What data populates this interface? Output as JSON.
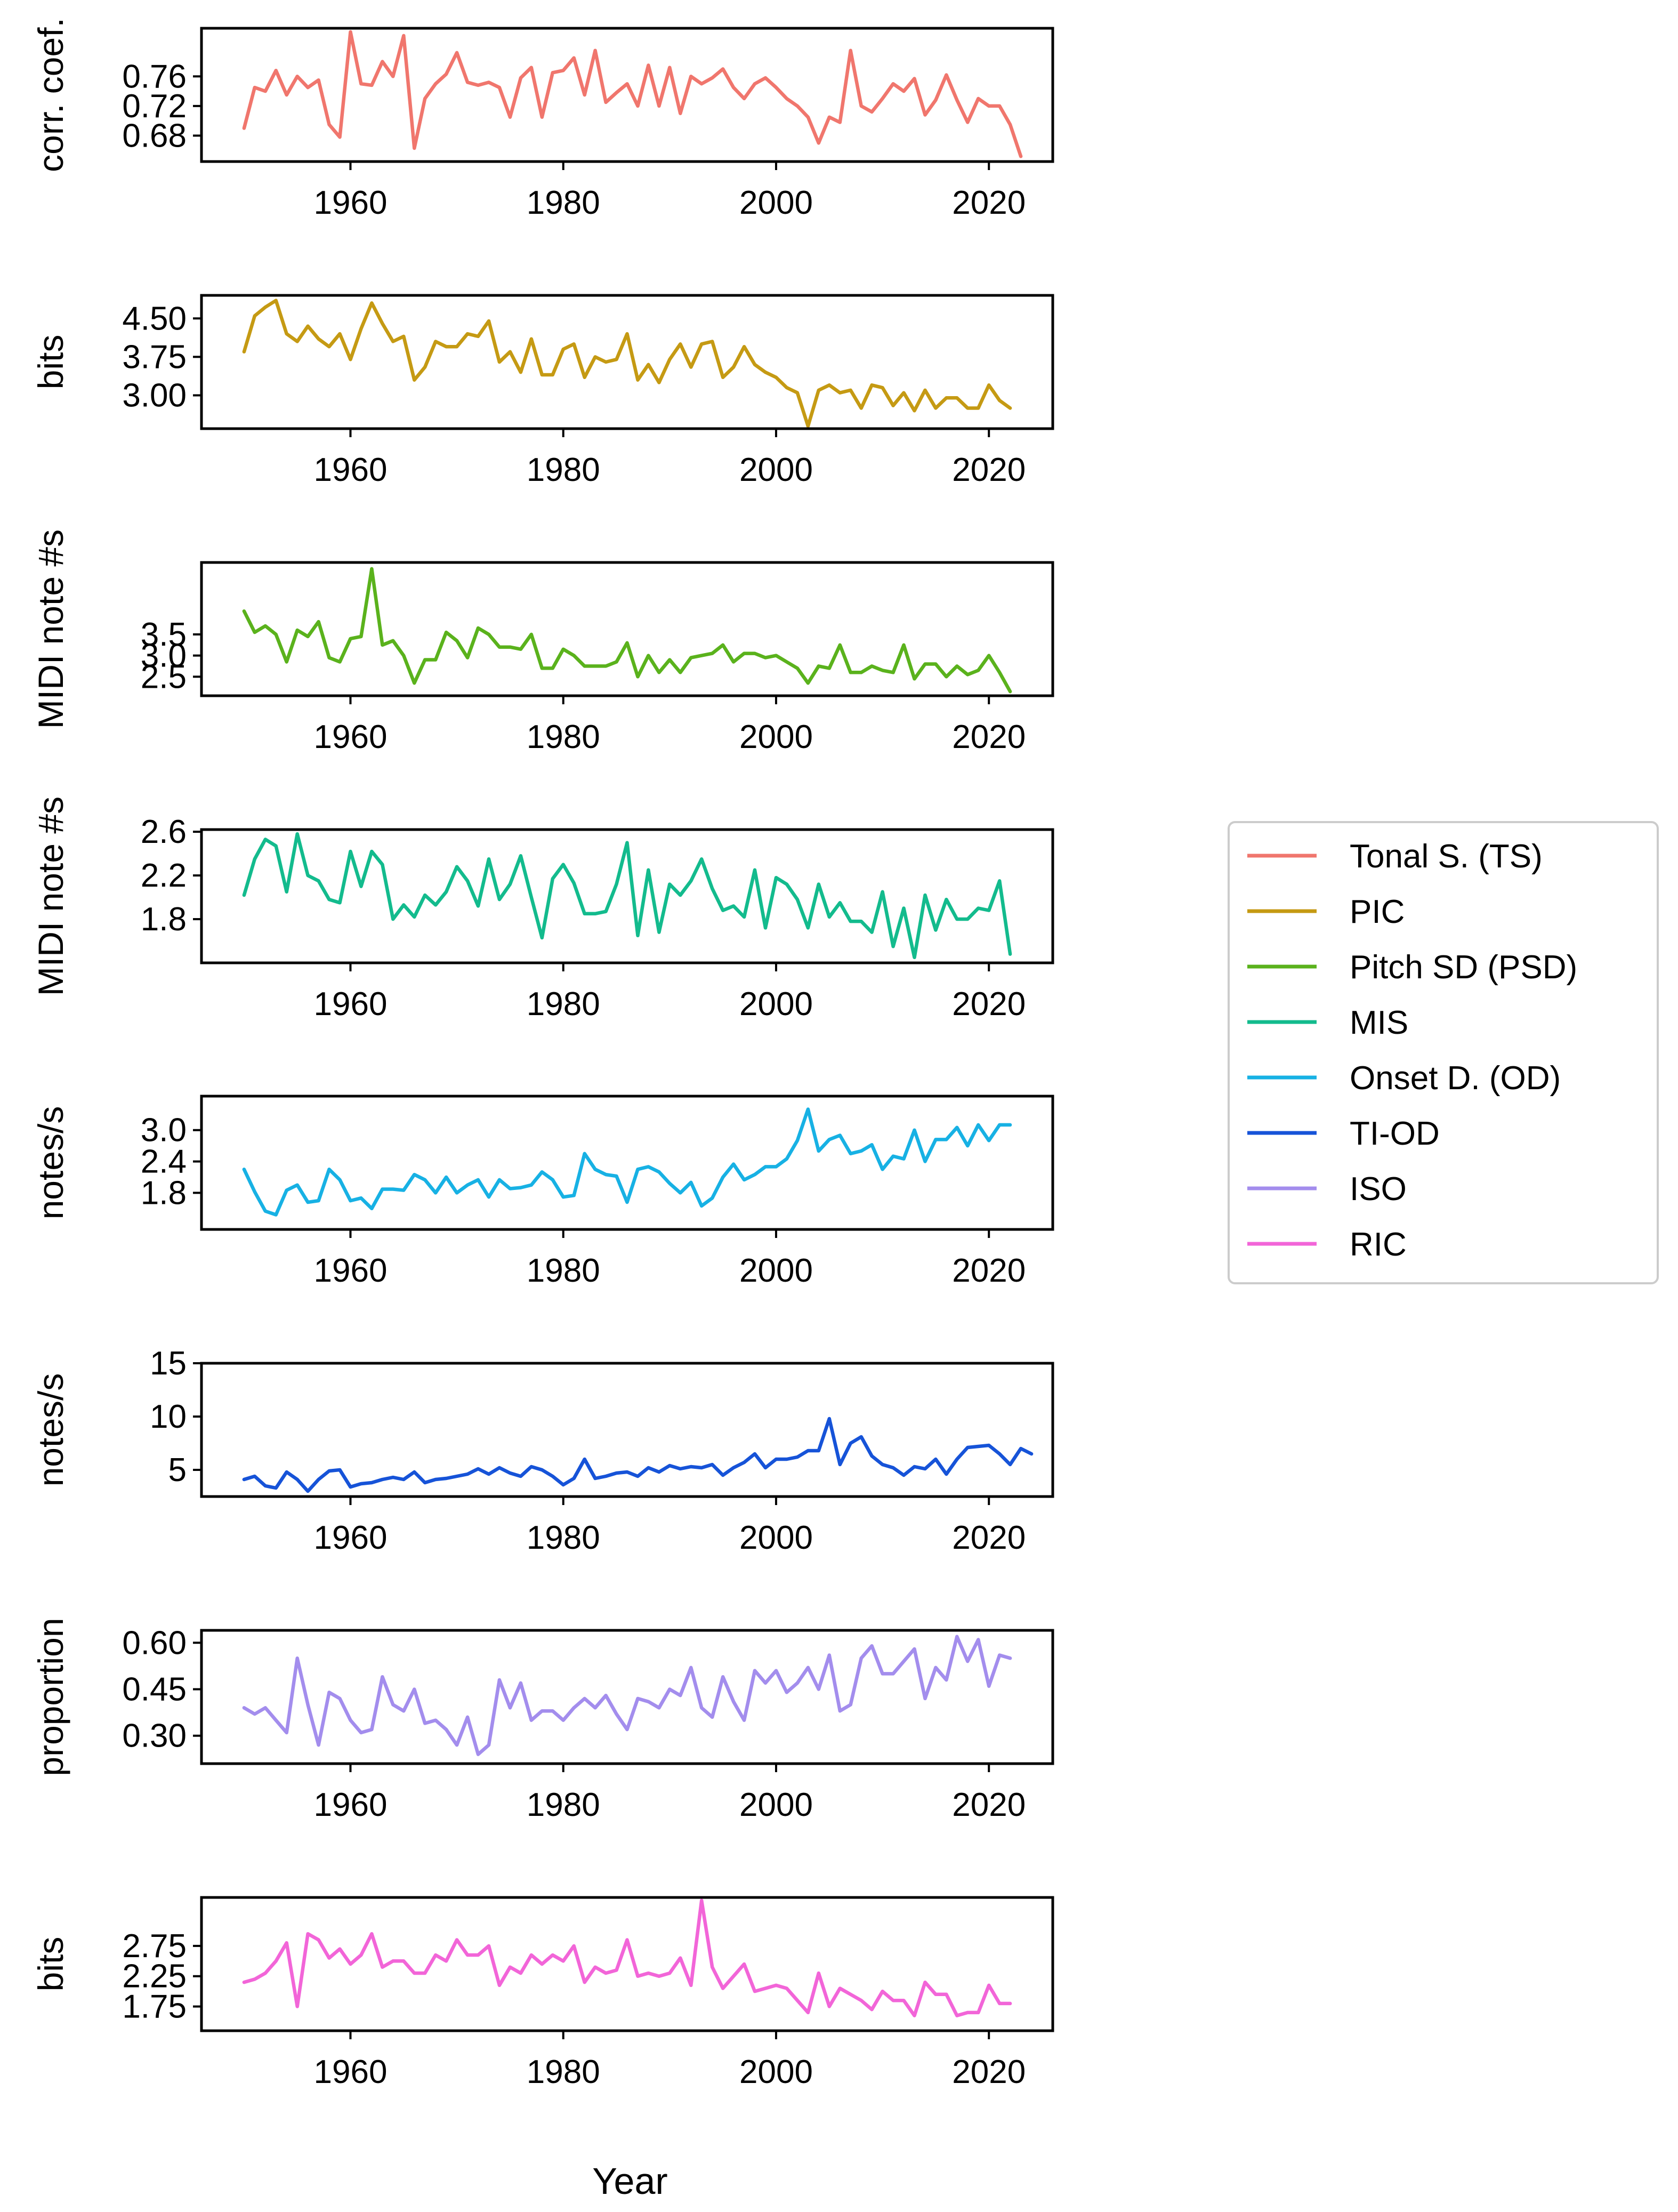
{
  "chart_data": [
    {
      "type": "line",
      "ylabel": "corr. coef.",
      "color": "#f0766d",
      "ylim": [
        0.645,
        0.825
      ],
      "yticks": [
        0.68,
        0.72,
        0.76
      ],
      "ytick_labels": [
        "0.68",
        "0.72",
        "0.76"
      ],
      "xlim": [
        1946,
        2026
      ],
      "xticks": [
        1960,
        1980,
        2000,
        2020
      ],
      "xtick_labels": [
        "1960",
        "1980",
        "2000",
        "2020"
      ],
      "series": [
        {
          "x_start": 1950,
          "values": [
            0.69,
            0.745,
            0.74,
            0.768,
            0.735,
            0.76,
            0.745,
            0.755,
            0.695,
            0.678,
            0.82,
            0.75,
            0.748,
            0.78,
            0.76,
            0.815,
            0.663,
            0.73,
            0.75,
            0.763,
            0.792,
            0.752,
            0.748,
            0.752,
            0.745,
            0.705,
            0.758,
            0.772,
            0.705,
            0.765,
            0.768,
            0.785,
            0.735,
            0.795,
            0.725,
            0.738,
            0.75,
            0.72,
            0.775,
            0.72,
            0.772,
            0.71,
            0.76,
            0.75,
            0.758,
            0.77,
            0.745,
            0.73,
            0.75,
            0.758,
            0.745,
            0.73,
            0.72,
            0.705,
            0.67,
            0.705,
            0.698,
            0.795,
            0.72,
            0.712,
            0.73,
            0.75,
            0.74,
            0.757,
            0.708,
            0.728,
            0.762,
            0.728,
            0.698,
            0.73,
            0.72,
            0.72,
            0.695,
            0.652
          ]
        }
      ]
    },
    {
      "type": "line",
      "ylabel": "bits",
      "color": "#c59a13",
      "ylim": [
        2.35,
        4.95
      ],
      "yticks": [
        3.0,
        3.75,
        4.5
      ],
      "ytick_labels": [
        "3.00",
        "3.75",
        "4.50"
      ],
      "xlim": [
        1946,
        2026
      ],
      "xticks": [
        1960,
        1980,
        2000,
        2020
      ],
      "xtick_labels": [
        "1960",
        "1980",
        "2000",
        "2020"
      ],
      "series": [
        {
          "x_start": 1950,
          "values": [
            3.85,
            4.55,
            4.72,
            4.85,
            4.2,
            4.05,
            4.35,
            4.1,
            3.95,
            4.2,
            3.7,
            4.3,
            4.8,
            4.4,
            4.05,
            4.15,
            3.3,
            3.55,
            4.05,
            3.95,
            3.95,
            4.2,
            4.15,
            4.45,
            3.65,
            3.85,
            3.45,
            4.1,
            3.4,
            3.4,
            3.9,
            4.0,
            3.35,
            3.75,
            3.65,
            3.7,
            4.2,
            3.3,
            3.6,
            3.25,
            3.7,
            4.0,
            3.55,
            4.0,
            4.05,
            3.35,
            3.55,
            3.95,
            3.6,
            3.45,
            3.35,
            3.15,
            3.05,
            2.4,
            3.1,
            3.2,
            3.05,
            3.1,
            2.75,
            3.2,
            3.15,
            2.8,
            3.05,
            2.7,
            3.1,
            2.75,
            2.95,
            2.95,
            2.75,
            2.75,
            3.2,
            2.9,
            2.75
          ]
        }
      ]
    },
    {
      "type": "line",
      "ylabel": "MIDI note #s",
      "color": "#5ab21c",
      "ylim": [
        2.05,
        5.2
      ],
      "yticks": [
        2.5,
        3.0,
        3.5
      ],
      "ytick_labels": [
        "2.5",
        "3.0",
        "3.5"
      ],
      "xlim": [
        1946,
        2026
      ],
      "xticks": [
        1960,
        1980,
        2000,
        2020
      ],
      "xtick_labels": [
        "1960",
        "1980",
        "2000",
        "2020"
      ],
      "series": [
        {
          "x_start": 1950,
          "values": [
            4.05,
            3.55,
            3.7,
            3.5,
            2.85,
            3.6,
            3.45,
            3.8,
            2.95,
            2.85,
            3.4,
            3.45,
            5.05,
            3.25,
            3.35,
            3.0,
            2.35,
            2.9,
            2.9,
            3.55,
            3.35,
            2.95,
            3.65,
            3.5,
            3.2,
            3.2,
            3.15,
            3.5,
            2.7,
            2.7,
            3.15,
            3.0,
            2.75,
            2.75,
            2.75,
            2.85,
            3.3,
            2.5,
            3.0,
            2.6,
            2.9,
            2.6,
            2.95,
            3.0,
            3.05,
            3.25,
            2.85,
            3.05,
            3.05,
            2.95,
            3.0,
            2.85,
            2.7,
            2.35,
            2.75,
            2.7,
            3.25,
            2.6,
            2.6,
            2.75,
            2.65,
            2.6,
            3.25,
            2.45,
            2.8,
            2.8,
            2.5,
            2.75,
            2.55,
            2.65,
            3.0,
            2.6,
            2.15
          ]
        }
      ]
    },
    {
      "type": "line",
      "ylabel": "MIDI note #s",
      "color": "#13bb8d",
      "ylim": [
        1.4,
        2.62
      ],
      "yticks": [
        1.8,
        2.2,
        2.6
      ],
      "ytick_labels": [
        "1.8",
        "2.2",
        "2.6"
      ],
      "xlim": [
        1946,
        2026
      ],
      "xticks": [
        1960,
        1980,
        2000,
        2020
      ],
      "xtick_labels": [
        "1960",
        "1980",
        "2000",
        "2020"
      ],
      "series": [
        {
          "x_start": 1950,
          "values": [
            2.02,
            2.35,
            2.53,
            2.47,
            2.05,
            2.58,
            2.2,
            2.15,
            1.98,
            1.95,
            2.42,
            2.1,
            2.42,
            2.3,
            1.8,
            1.93,
            1.82,
            2.02,
            1.93,
            2.05,
            2.28,
            2.15,
            1.92,
            2.35,
            1.98,
            2.12,
            2.38,
            2.0,
            1.63,
            2.17,
            2.3,
            2.13,
            1.85,
            1.85,
            1.87,
            2.12,
            2.5,
            1.65,
            2.25,
            1.68,
            2.12,
            2.02,
            2.15,
            2.35,
            2.08,
            1.88,
            1.92,
            1.82,
            2.25,
            1.72,
            2.18,
            2.12,
            1.98,
            1.72,
            2.12,
            1.82,
            1.95,
            1.78,
            1.78,
            1.68,
            2.05,
            1.55,
            1.9,
            1.45,
            2.02,
            1.7,
            1.98,
            1.8,
            1.8,
            1.9,
            1.88,
            2.15,
            1.48
          ]
        }
      ]
    },
    {
      "type": "line",
      "ylabel": "notes/s",
      "color": "#17b1e4",
      "ylim": [
        1.1,
        3.65
      ],
      "yticks": [
        1.8,
        2.4,
        3.0
      ],
      "ytick_labels": [
        "1.8",
        "2.4",
        "3.0"
      ],
      "xlim": [
        1946,
        2026
      ],
      "xticks": [
        1960,
        1980,
        2000,
        2020
      ],
      "xtick_labels": [
        "1960",
        "1980",
        "2000",
        "2020"
      ],
      "series": [
        {
          "x_start": 1950,
          "values": [
            2.25,
            1.82,
            1.45,
            1.38,
            1.85,
            1.95,
            1.62,
            1.65,
            2.25,
            2.05,
            1.65,
            1.7,
            1.5,
            1.87,
            1.87,
            1.85,
            2.15,
            2.05,
            1.8,
            2.1,
            1.8,
            1.95,
            2.05,
            1.72,
            2.05,
            1.88,
            1.9,
            1.95,
            2.2,
            2.05,
            1.72,
            1.75,
            2.55,
            2.25,
            2.15,
            2.12,
            1.62,
            2.25,
            2.3,
            2.2,
            1.98,
            1.8,
            2.0,
            1.55,
            1.7,
            2.1,
            2.35,
            2.05,
            2.15,
            2.3,
            2.3,
            2.45,
            2.8,
            3.4,
            2.6,
            2.82,
            2.9,
            2.55,
            2.6,
            2.72,
            2.25,
            2.5,
            2.45,
            3.0,
            2.4,
            2.82,
            2.82,
            3.05,
            2.7,
            3.1,
            2.8,
            3.1,
            3.1
          ]
        }
      ]
    },
    {
      "type": "line",
      "ylabel": "notes/s",
      "color": "#1653d8",
      "ylim": [
        2.5,
        15
      ],
      "yticks": [
        5,
        10,
        15
      ],
      "ytick_labels": [
        "5",
        "10",
        "15"
      ],
      "xlim": [
        1946,
        2026
      ],
      "xticks": [
        1960,
        1980,
        2000,
        2020
      ],
      "xtick_labels": [
        "1960",
        "1980",
        "2000",
        "2020"
      ],
      "series": [
        {
          "x_start": 1950,
          "values": [
            4.1,
            4.4,
            3.5,
            3.3,
            4.8,
            4.1,
            3.0,
            4.1,
            4.9,
            5.0,
            3.4,
            3.7,
            3.8,
            4.1,
            4.3,
            4.1,
            4.8,
            3.8,
            4.1,
            4.2,
            4.4,
            4.6,
            5.1,
            4.6,
            5.2,
            4.7,
            4.4,
            5.3,
            5.0,
            4.4,
            3.6,
            4.2,
            6.0,
            4.2,
            4.4,
            4.7,
            4.8,
            4.4,
            5.2,
            4.8,
            5.4,
            5.1,
            5.3,
            5.2,
            5.5,
            4.5,
            5.2,
            5.7,
            6.5,
            5.2,
            6.0,
            6.0,
            6.2,
            6.8,
            6.8,
            9.8,
            5.5,
            7.5,
            8.1,
            6.3,
            5.5,
            5.2,
            4.5,
            5.3,
            5.1,
            6.0,
            4.6,
            6.0,
            7.1,
            7.2,
            7.3,
            6.5,
            5.5,
            7.0,
            6.5
          ]
        }
      ]
    },
    {
      "type": "line",
      "ylabel": "proportion",
      "color": "#a38ded",
      "ylim": [
        0.21,
        0.64
      ],
      "yticks": [
        0.3,
        0.45,
        0.6
      ],
      "ytick_labels": [
        "0.30",
        "0.45",
        "0.60"
      ],
      "xlim": [
        1946,
        2026
      ],
      "xticks": [
        1960,
        1980,
        2000,
        2020
      ],
      "xtick_labels": [
        "1960",
        "1980",
        "2000",
        "2020"
      ],
      "series": [
        {
          "x_start": 1950,
          "values": [
            0.39,
            0.37,
            0.39,
            0.35,
            0.31,
            0.55,
            0.4,
            0.27,
            0.44,
            0.42,
            0.35,
            0.31,
            0.32,
            0.49,
            0.4,
            0.38,
            0.45,
            0.34,
            0.35,
            0.32,
            0.27,
            0.36,
            0.24,
            0.27,
            0.48,
            0.39,
            0.47,
            0.35,
            0.38,
            0.38,
            0.35,
            0.39,
            0.42,
            0.39,
            0.43,
            0.37,
            0.32,
            0.42,
            0.41,
            0.39,
            0.45,
            0.43,
            0.52,
            0.39,
            0.36,
            0.49,
            0.41,
            0.35,
            0.51,
            0.47,
            0.51,
            0.44,
            0.47,
            0.52,
            0.45,
            0.56,
            0.38,
            0.4,
            0.55,
            0.59,
            0.5,
            0.5,
            0.54,
            0.58,
            0.42,
            0.52,
            0.48,
            0.62,
            0.54,
            0.61,
            0.46,
            0.56,
            0.55
          ]
        }
      ]
    },
    {
      "type": "line",
      "ylabel": "bits",
      "color": "#f265d8",
      "ylim": [
        1.35,
        3.55
      ],
      "yticks": [
        1.75,
        2.25,
        2.75
      ],
      "ytick_labels": [
        "1.75",
        "2.25",
        "2.75"
      ],
      "xlim": [
        1946,
        2026
      ],
      "xticks": [
        1960,
        1980,
        2000,
        2020
      ],
      "xtick_labels": [
        "1960",
        "1980",
        "2000",
        "2020"
      ],
      "series": [
        {
          "x_start": 1950,
          "values": [
            2.15,
            2.2,
            2.3,
            2.5,
            2.8,
            1.75,
            2.95,
            2.85,
            2.55,
            2.7,
            2.45,
            2.6,
            2.95,
            2.4,
            2.5,
            2.5,
            2.3,
            2.3,
            2.6,
            2.5,
            2.85,
            2.6,
            2.6,
            2.75,
            2.1,
            2.4,
            2.3,
            2.6,
            2.45,
            2.6,
            2.5,
            2.75,
            2.15,
            2.4,
            2.3,
            2.35,
            2.85,
            2.25,
            2.3,
            2.25,
            2.3,
            2.55,
            2.1,
            3.5,
            2.4,
            2.05,
            2.25,
            2.45,
            2.0,
            2.05,
            2.1,
            2.05,
            1.85,
            1.65,
            2.3,
            1.75,
            2.05,
            1.95,
            1.85,
            1.7,
            2.0,
            1.85,
            1.85,
            1.6,
            2.15,
            1.95,
            1.95,
            1.6,
            1.65,
            1.65,
            2.1,
            1.8,
            1.8
          ]
        }
      ]
    }
  ],
  "xlabel": "Year",
  "legend": {
    "position": "right-center",
    "entries": [
      {
        "label": "Tonal S. (TS)",
        "color": "#f0766d"
      },
      {
        "label": "PIC",
        "color": "#c59a13"
      },
      {
        "label": "Pitch SD (PSD)",
        "color": "#5ab21c"
      },
      {
        "label": "MIS",
        "color": "#13bb8d"
      },
      {
        "label": "Onset D. (OD)",
        "color": "#17b1e4"
      },
      {
        "label": "TI-OD",
        "color": "#1653d8"
      },
      {
        "label": "ISO",
        "color": "#a38ded"
      },
      {
        "label": "RIC",
        "color": "#f265d8"
      }
    ]
  }
}
